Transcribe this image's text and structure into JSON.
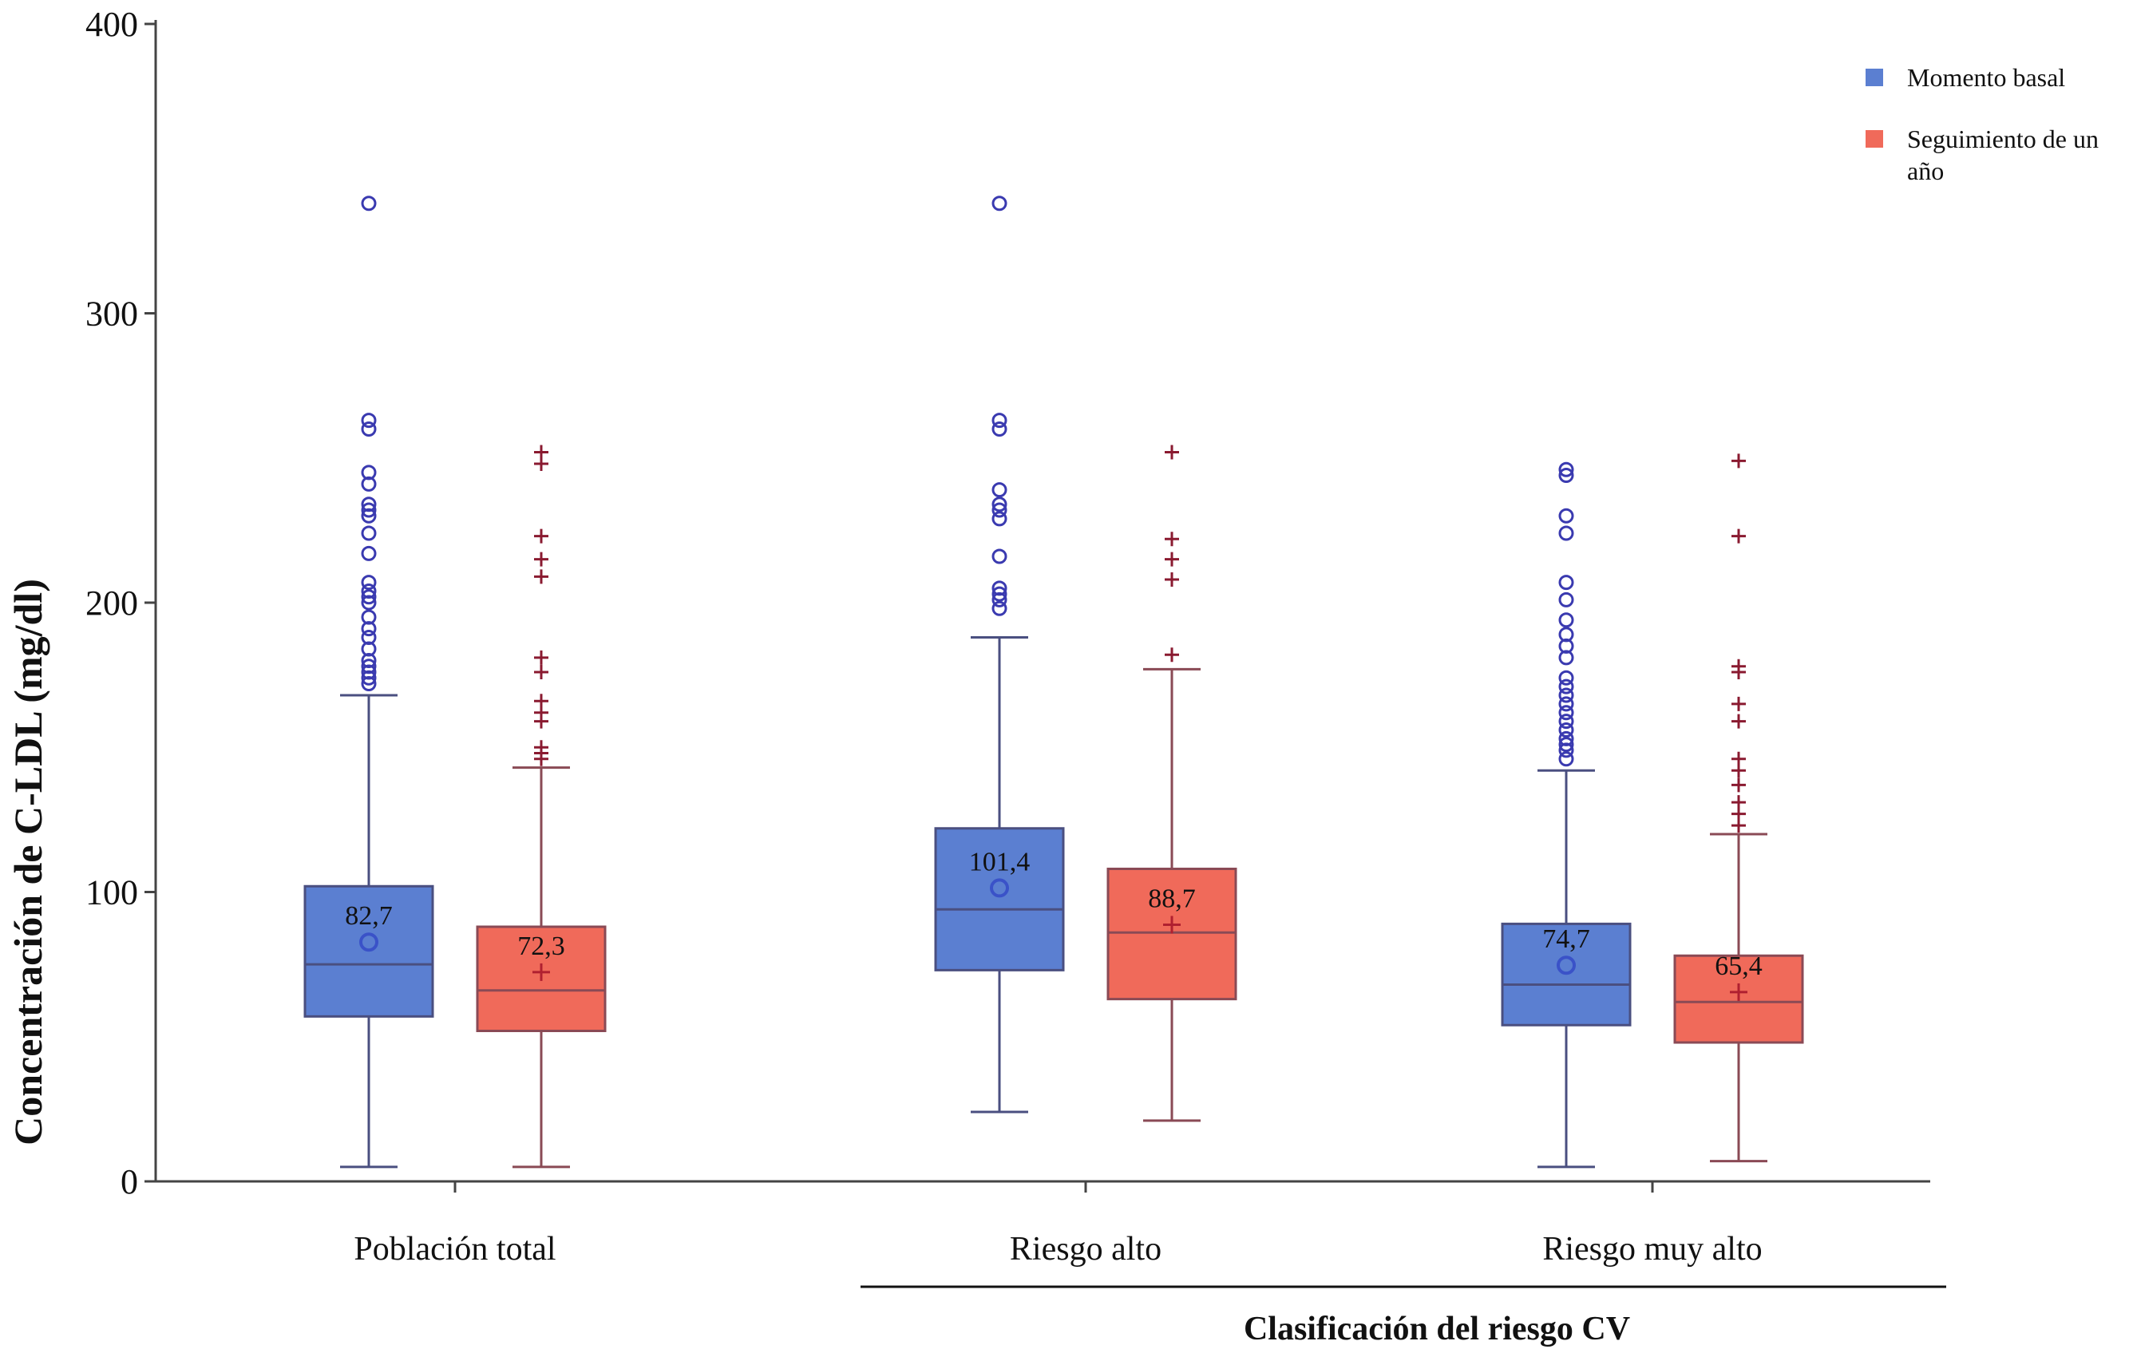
{
  "chart_data": {
    "type": "boxplot",
    "ylabel": "Concentración de C-LDL (mg/dl)",
    "xlabel": "Clasificación del riesgo CV",
    "ylim": [
      0,
      400
    ],
    "yticks": [
      "0",
      "100",
      "200",
      "300",
      "400"
    ],
    "categories": [
      "Población total",
      "Riesgo alto",
      "Riesgo muy alto"
    ],
    "legend_position": "top-right",
    "series": [
      {
        "name": "Momento basal",
        "color": "#5b7fd1",
        "marker": "circle",
        "boxes": [
          {
            "min": 5,
            "q1": 57,
            "median": 75,
            "q3": 102,
            "max": 168,
            "mean": 82.7,
            "mean_label": "82,7",
            "outliers": [
              172,
              174,
              176,
              178,
              180,
              184,
              188,
              191,
              195,
              200,
              202,
              204,
              207,
              217,
              224,
              230,
              232,
              234,
              241,
              245,
              260,
              263,
              338
            ]
          },
          {
            "min": 24,
            "q1": 73,
            "median": 94,
            "q3": 122,
            "max": 188,
            "mean": 101.4,
            "mean_label": "101,4",
            "outliers": [
              198,
              201,
              203,
              205,
              216,
              229,
              232,
              234,
              239,
              260,
              263,
              338
            ]
          },
          {
            "min": 5,
            "q1": 54,
            "median": 68,
            "q3": 89,
            "max": 142,
            "mean": 74.7,
            "mean_label": "74,7",
            "outliers": [
              146,
              149,
              151,
              153,
              156,
              159,
              162,
              165,
              168,
              171,
              174,
              181,
              185,
              189,
              194,
              201,
              207,
              224,
              230,
              244,
              246
            ]
          }
        ]
      },
      {
        "name": "Seguimiento de un año",
        "color": "#f06a5a",
        "marker": "plus",
        "boxes": [
          {
            "min": 5,
            "q1": 52,
            "median": 66,
            "q3": 88,
            "max": 143,
            "mean": 72.3,
            "mean_label": "72,3",
            "outliers": [
              146,
              148,
              150,
              159,
              162,
              166,
              176,
              181,
              209,
              215,
              223,
              248,
              252
            ]
          },
          {
            "min": 21,
            "q1": 63,
            "median": 86,
            "q3": 108,
            "max": 177,
            "mean": 88.7,
            "mean_label": "88,7",
            "outliers": [
              182,
              208,
              215,
              222,
              252
            ]
          },
          {
            "min": 7,
            "q1": 48,
            "median": 62,
            "q3": 78,
            "max": 120,
            "mean": 65.4,
            "mean_label": "65,4",
            "outliers": [
              123,
              127,
              131,
              137,
              142,
              146,
              159,
              165,
              176,
              178,
              223,
              249
            ]
          }
        ]
      }
    ]
  }
}
